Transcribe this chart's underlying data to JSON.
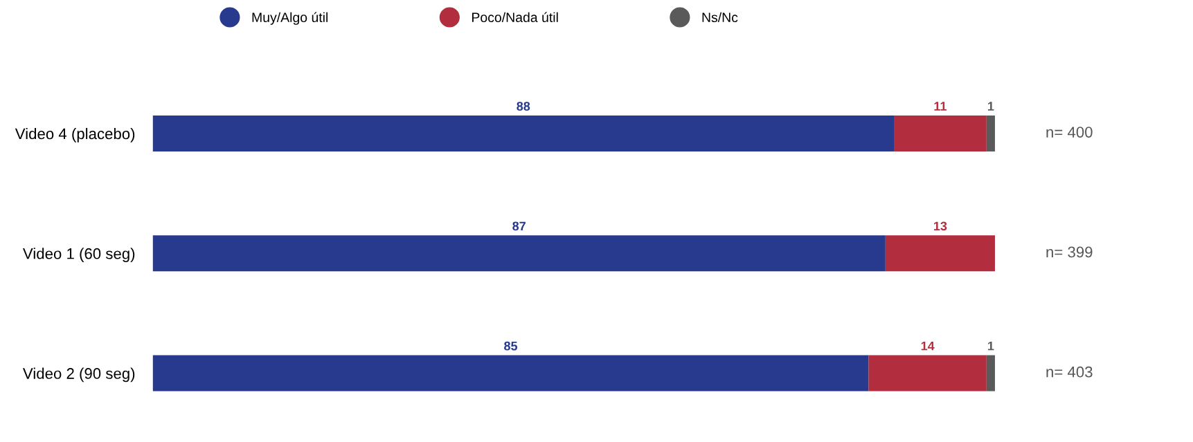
{
  "chart_data": {
    "type": "bar",
    "orientation": "horizontal",
    "stacked": true,
    "categories": [
      "Video 4 (placebo)",
      "Video 1 (60 seg)",
      "Video 2 (90 seg)"
    ],
    "series": [
      {
        "name": "Muy/Algo útil",
        "color": "#283a8e",
        "values": [
          88,
          87,
          85
        ]
      },
      {
        "name": "Poco/Nada útil",
        "color": "#b22d3d",
        "values": [
          11,
          13,
          14
        ]
      },
      {
        "name": "Ns/Nc",
        "color": "#5a5a5a",
        "values": [
          1,
          null,
          1
        ]
      }
    ],
    "data_labels": true,
    "legend": "top",
    "grid": false,
    "tick_labels": "y",
    "annotations": [
      "n= 400",
      "n= 399",
      "n= 403"
    ]
  }
}
